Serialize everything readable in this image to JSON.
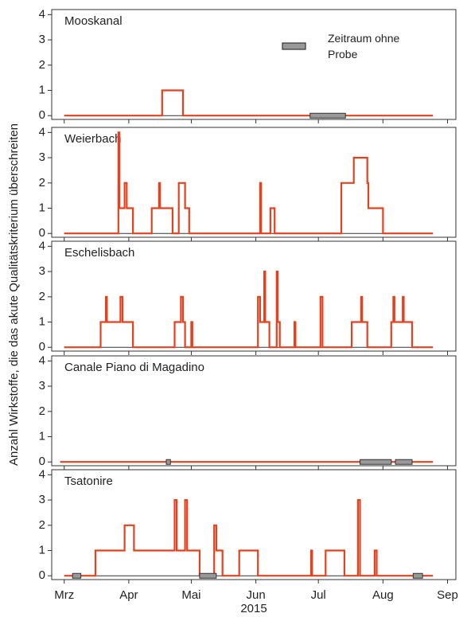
{
  "chart_data": [
    {
      "type": "line",
      "title": "Mooskanal",
      "ylabel": "Anzahl Wirkstoffe, die das akute Qualitätskriterium überschreiten",
      "legend_label": "Zeitraum ohne Probe",
      "color": "#e8401c",
      "x": [
        0,
        47,
        47,
        57,
        57,
        177
      ],
      "values": [
        0,
        0,
        1,
        1,
        0,
        0
      ],
      "gaps": [
        [
          118,
          135
        ]
      ],
      "ylim": [
        -0.15,
        4.2
      ],
      "yticks": [
        0,
        1,
        2,
        3,
        4
      ]
    },
    {
      "type": "line",
      "title": "Weierbach",
      "color": "#e8401c",
      "x": [
        0,
        26,
        26,
        26.5,
        26.5,
        29,
        29,
        30,
        30,
        33,
        33,
        42,
        42,
        45.5,
        45.5,
        46,
        46,
        52,
        52,
        55,
        55,
        58,
        58,
        60,
        60,
        94,
        94,
        94.5,
        94.5,
        99,
        99,
        101,
        101,
        133,
        133,
        139,
        139,
        145.5,
        145.5,
        146,
        146,
        153,
        153,
        177
      ],
      "values": [
        0,
        0,
        4,
        4,
        1,
        1,
        2,
        2,
        1,
        1,
        0,
        0,
        1,
        1,
        2,
        2,
        1,
        1,
        0,
        0,
        2,
        2,
        1,
        1,
        0,
        0,
        2,
        2,
        0,
        0,
        1,
        1,
        0,
        0,
        2,
        2,
        3,
        3,
        2,
        2,
        1,
        1,
        0,
        0
      ],
      "gaps": [],
      "ylim": [
        -0.15,
        4.2
      ],
      "yticks": [
        0,
        1,
        2,
        3,
        4
      ]
    },
    {
      "type": "line",
      "title": "Eschelisbach",
      "color": "#e8401c",
      "x": [
        0,
        17.5,
        17.5,
        20,
        20,
        20.5,
        20.5,
        27,
        27,
        28,
        28,
        33,
        33,
        53,
        53,
        56,
        56,
        57,
        57,
        58,
        58,
        61,
        61,
        61.5,
        61.5,
        93,
        93,
        94,
        94,
        96,
        96,
        96.5,
        96.5,
        98.5,
        98.5,
        102,
        102,
        102.5,
        102.5,
        103.5,
        103.5,
        110.5,
        110.5,
        111,
        111,
        123,
        123,
        124,
        124,
        138,
        138,
        142.5,
        142.5,
        143,
        143,
        145.5,
        145.5,
        157,
        157,
        158,
        158,
        158.5,
        158.5,
        162.5,
        162.5,
        163,
        163,
        167,
        167,
        177
      ],
      "values": [
        0,
        0,
        1,
        1,
        2,
        2,
        1,
        1,
        2,
        2,
        1,
        1,
        0,
        0,
        1,
        1,
        2,
        2,
        1,
        1,
        0,
        0,
        1,
        1,
        0,
        0,
        2,
        2,
        1,
        1,
        3,
        3,
        1,
        1,
        0,
        0,
        3,
        3,
        1,
        1,
        0,
        0,
        1,
        1,
        0,
        0,
        2,
        2,
        0,
        0,
        1,
        1,
        2,
        2,
        1,
        1,
        0,
        0,
        1,
        1,
        2,
        2,
        1,
        1,
        2,
        2,
        1,
        1,
        0,
        0
      ],
      "gaps": [],
      "ylim": [
        -0.15,
        4.2
      ],
      "yticks": [
        0,
        1,
        2,
        3,
        4
      ]
    },
    {
      "type": "line",
      "title": "Canale Piano di Magadino",
      "color": "#e8401c",
      "x": [
        -2,
        177
      ],
      "values": [
        0,
        0
      ],
      "gaps": [
        [
          49,
          51
        ],
        [
          142,
          157
        ],
        [
          159,
          167
        ]
      ],
      "ylim": [
        -0.15,
        4.2
      ],
      "yticks": [
        0,
        1,
        2,
        3,
        4
      ]
    },
    {
      "type": "line",
      "title": "Tsatonire",
      "color": "#e8401c",
      "xlabel": "2015",
      "x": [
        0,
        15,
        15,
        29,
        29,
        33.5,
        33.5,
        53,
        53,
        54,
        54,
        58,
        58,
        59,
        59,
        65,
        65,
        72,
        72,
        73,
        73,
        76,
        76,
        84,
        84,
        93,
        93,
        118.5,
        118.5,
        119,
        119,
        125.5,
        125.5,
        134.5,
        134.5,
        141,
        141,
        142,
        142,
        149,
        149,
        150,
        150,
        177
      ],
      "values": [
        0,
        0,
        1,
        1,
        2,
        2,
        1,
        1,
        3,
        3,
        1,
        1,
        3,
        3,
        1,
        1,
        0,
        0,
        2,
        2,
        1,
        1,
        0,
        0,
        1,
        1,
        0,
        0,
        1,
        1,
        0,
        0,
        1,
        1,
        0,
        0,
        3,
        3,
        0,
        0,
        1,
        1,
        0,
        0
      ],
      "gaps": [
        [
          4,
          8
        ],
        [
          65,
          73
        ],
        [
          167.5,
          172
        ]
      ],
      "ylim": [
        -0.15,
        4.2
      ],
      "yticks": [
        0,
        1,
        2,
        3,
        4
      ],
      "xlim": [
        -6,
        188
      ],
      "xticks": [
        {
          "value": 0,
          "label": "Mrz"
        },
        {
          "value": 31,
          "label": "Apr"
        },
        {
          "value": 61,
          "label": "Mai"
        },
        {
          "value": 92,
          "label": "Jun"
        },
        {
          "value": 122,
          "label": "Jul"
        },
        {
          "value": 153,
          "label": "Aug"
        },
        {
          "value": 184,
          "label": "Sep"
        }
      ]
    }
  ]
}
